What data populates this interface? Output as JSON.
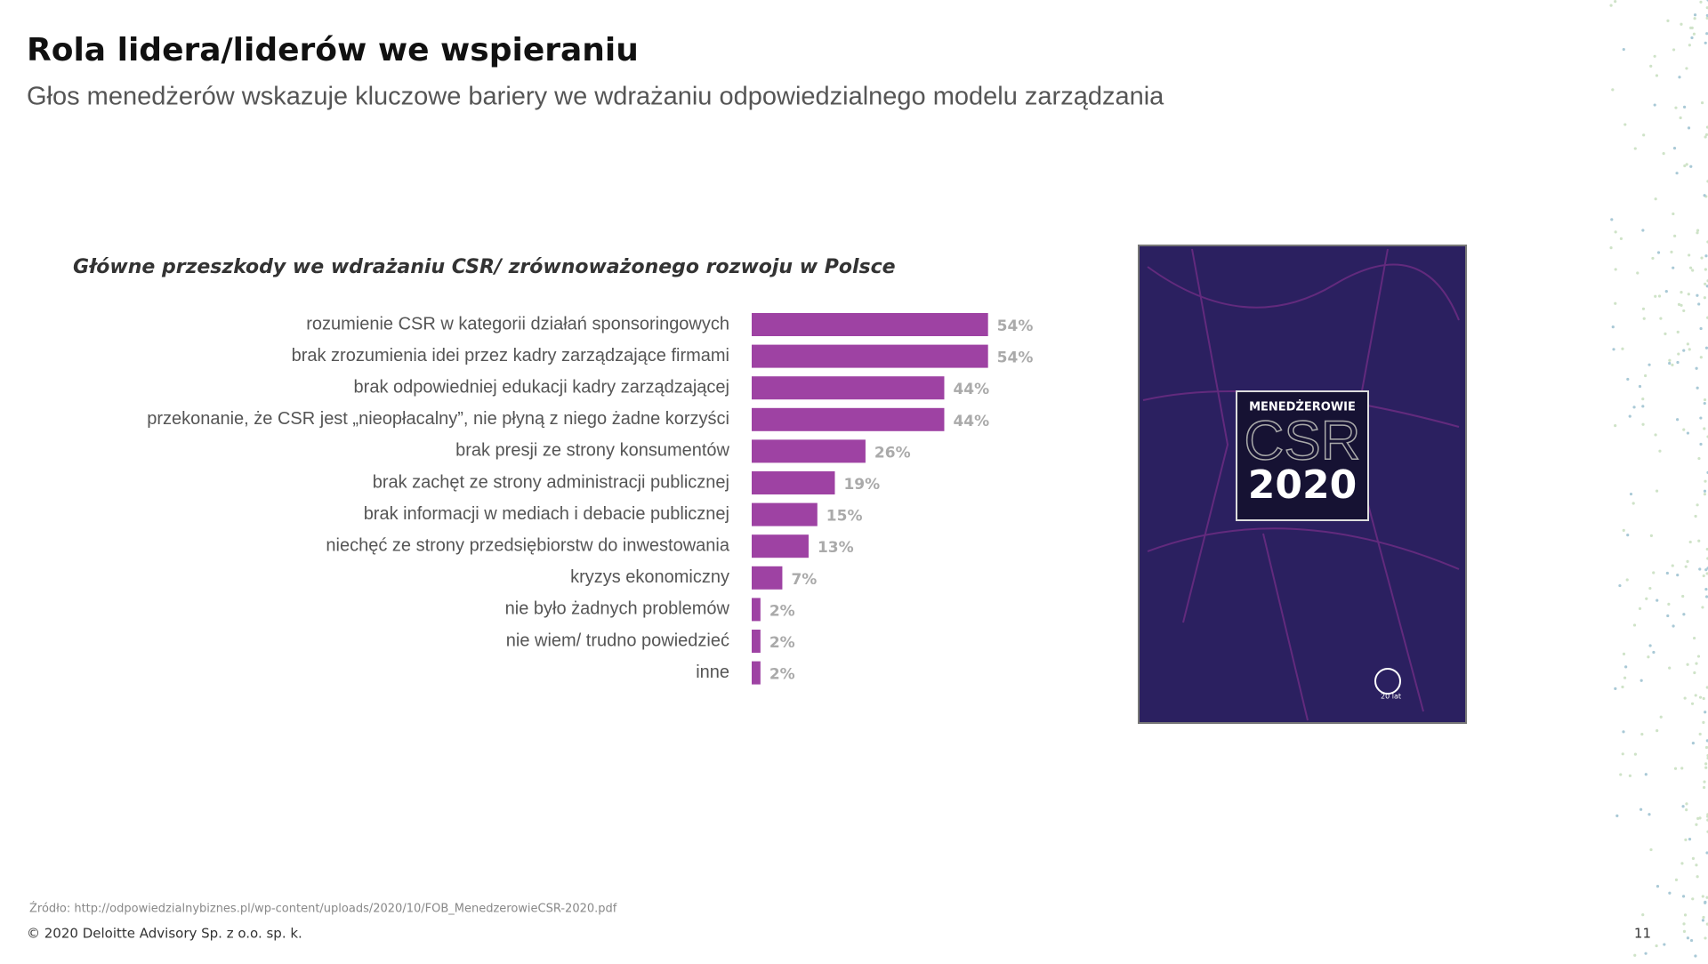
{
  "header": {
    "title": "Rola lidera/liderów we wspieraniu",
    "subtitle": "Głos menedżerów wskazuje kluczowe bariery we wdrażaniu odpowiedzialnego modelu zarządzania"
  },
  "chart_data": {
    "type": "bar",
    "orientation": "horizontal",
    "title": "Główne przeszkody we wdrażaniu CSR/ zrównoważonego rozwoju w Polsce",
    "categories": [
      "rozumienie CSR w kategorii działań sponsoringowych",
      "brak zrozumienia idei przez kadry zarządzające firmami",
      "brak odpowiedniej edukacji kadry zarządzającej",
      "przekonanie, że CSR jest „nieopłacalny”, nie płyną z niego żadne korzyści",
      "brak presji ze strony konsumentów",
      "brak zachęt ze strony administracji publicznej",
      "brak informacji w mediach i debacie publicznej",
      "niechęć ze strony przedsiębiorstw do inwestowania",
      "kryzys ekonomiczny",
      "nie było żadnych problemów",
      "nie wiem/ trudno powiedzieć",
      "inne"
    ],
    "values": [
      54,
      54,
      44,
      44,
      26,
      19,
      15,
      13,
      7,
      2,
      2,
      2
    ],
    "value_labels": [
      "54%",
      "54%",
      "44%",
      "44%",
      "26%",
      "19%",
      "15%",
      "13%",
      "7%",
      "2%",
      "2%",
      "2%"
    ],
    "color": "#9e42a3"
  },
  "cover": {
    "line1": "MENEDŻEROWIE",
    "line2": "CSR",
    "line3": "2020",
    "logo": "20 lat"
  },
  "footer": {
    "source": "Źródło: http://odpowiedzialnybiznes.pl/wp-content/uploads/2020/10/FOB_MenedzerowieCSR-2020.pdf",
    "copyright": "© 2020 Deloitte Advisory Sp. z o.o. sp. k.",
    "page": "11"
  }
}
